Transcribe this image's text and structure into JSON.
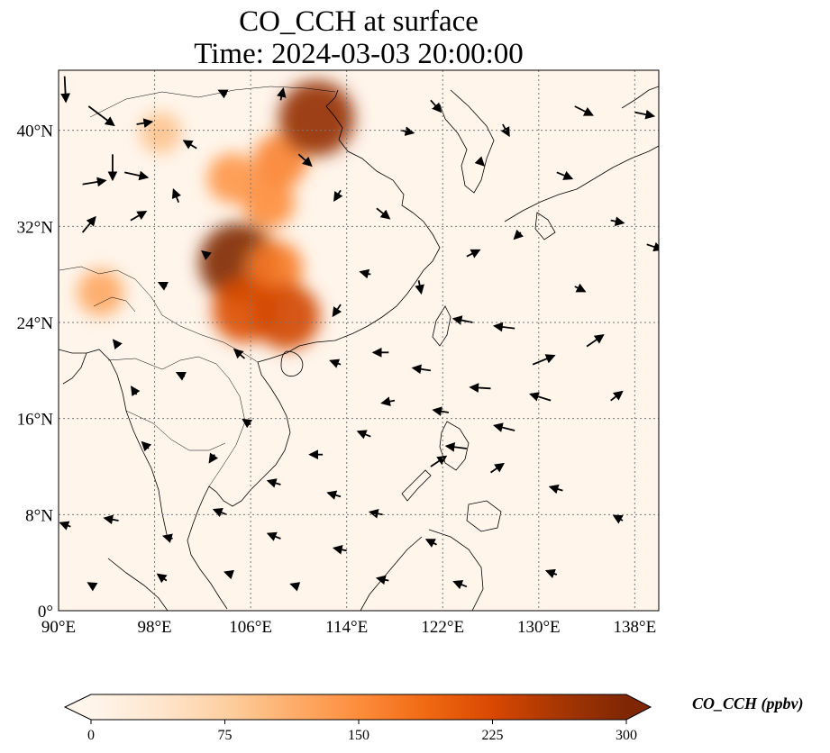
{
  "title": {
    "line1": "CO_CCH at surface",
    "line2": "Time: 2024-03-03 20:00:00"
  },
  "map": {
    "lon_range": [
      90,
      140
    ],
    "lat_range": [
      0,
      45
    ],
    "lon_ticks": [
      "90°E",
      "98°E",
      "106°E",
      "114°E",
      "122°E",
      "130°E",
      "138°E"
    ],
    "lon_tick_values": [
      90,
      98,
      106,
      114,
      122,
      130,
      138
    ],
    "lat_ticks": [
      "0°",
      "8°N",
      "16°N",
      "24°N",
      "32°N",
      "40°N"
    ],
    "lat_tick_values": [
      0,
      8,
      16,
      24,
      32,
      40
    ],
    "gridlines": true,
    "background_color": "#fff5eb"
  },
  "colorbar": {
    "label": "CO_CCH (ppbv)",
    "min": 0,
    "max": 300,
    "ticks": [
      "0",
      "75",
      "150",
      "225",
      "300"
    ],
    "tick_values": [
      0,
      75,
      150,
      225,
      300
    ],
    "colormap": [
      "#fff5eb",
      "#fee6ce",
      "#fdd0a2",
      "#fdae6b",
      "#fd8d3c",
      "#f16913",
      "#d94801",
      "#a63603",
      "#7f2704"
    ],
    "extend": "both"
  },
  "plumes": [
    {
      "lon": 108.5,
      "lat": 37.5,
      "value": 160
    },
    {
      "lon": 111.5,
      "lat": 41.0,
      "value": 280
    },
    {
      "lon": 105.0,
      "lat": 29.0,
      "value": 300
    },
    {
      "lon": 108.0,
      "lat": 28.5,
      "value": 170
    },
    {
      "lon": 105.5,
      "lat": 25.0,
      "value": 220
    },
    {
      "lon": 109.0,
      "lat": 24.5,
      "value": 230
    },
    {
      "lon": 107.5,
      "lat": 34.0,
      "value": 150
    },
    {
      "lon": 104.5,
      "lat": 36.0,
      "value": 140
    },
    {
      "lon": 93.5,
      "lat": 26.5,
      "value": 120
    },
    {
      "lon": 98.5,
      "lat": 39.8,
      "value": 90
    }
  ],
  "wind_vectors": [
    {
      "lon": 90.5,
      "lat": 44.5,
      "u": 0.1,
      "v": -2.0
    },
    {
      "lon": 92.5,
      "lat": 42.0,
      "u": 2.0,
      "v": -1.5
    },
    {
      "lon": 94.5,
      "lat": 38.0,
      "u": 0.0,
      "v": -2.0
    },
    {
      "lon": 92.0,
      "lat": 35.5,
      "u": 1.8,
      "v": 0.3
    },
    {
      "lon": 95.5,
      "lat": 36.5,
      "u": 1.8,
      "v": -0.4
    },
    {
      "lon": 92.0,
      "lat": 31.5,
      "u": 1.0,
      "v": 1.2
    },
    {
      "lon": 96.0,
      "lat": 32.5,
      "u": 1.2,
      "v": 0.7
    },
    {
      "lon": 96.5,
      "lat": 40.5,
      "u": 1.2,
      "v": 0.2
    },
    {
      "lon": 100.0,
      "lat": 34.0,
      "u": -0.4,
      "v": 1.0
    },
    {
      "lon": 101.5,
      "lat": 38.5,
      "u": -1.0,
      "v": 0.6
    },
    {
      "lon": 104.0,
      "lat": 43.0,
      "u": -0.6,
      "v": 0.3
    },
    {
      "lon": 108.5,
      "lat": 42.5,
      "u": 0.2,
      "v": 0.9
    },
    {
      "lon": 110.0,
      "lat": 38.0,
      "u": 1.0,
      "v": -0.9
    },
    {
      "lon": 113.5,
      "lat": 35.0,
      "u": -0.5,
      "v": -0.8
    },
    {
      "lon": 116.5,
      "lat": 33.5,
      "u": 1.0,
      "v": -0.8
    },
    {
      "lon": 118.5,
      "lat": 40.0,
      "u": 1.0,
      "v": -0.2
    },
    {
      "lon": 121.0,
      "lat": 42.5,
      "u": 0.8,
      "v": -0.9
    },
    {
      "lon": 125.0,
      "lat": 37.5,
      "u": 0.4,
      "v": -0.4
    },
    {
      "lon": 127.0,
      "lat": 40.5,
      "u": 0.5,
      "v": -0.9
    },
    {
      "lon": 133.0,
      "lat": 42.0,
      "u": 1.4,
      "v": -0.7
    },
    {
      "lon": 138.0,
      "lat": 41.5,
      "u": 1.5,
      "v": -0.3
    },
    {
      "lon": 131.5,
      "lat": 36.5,
      "u": 1.2,
      "v": -0.5
    },
    {
      "lon": 136.0,
      "lat": 32.5,
      "u": 1.0,
      "v": -0.2
    },
    {
      "lon": 139.0,
      "lat": 30.5,
      "u": 1.2,
      "v": -0.4
    },
    {
      "lon": 133.0,
      "lat": 27.0,
      "u": 0.8,
      "v": -0.4
    },
    {
      "lon": 128.5,
      "lat": 31.5,
      "u": -0.5,
      "v": -0.5
    },
    {
      "lon": 124.0,
      "lat": 29.5,
      "u": 1.0,
      "v": 0.5
    },
    {
      "lon": 120.0,
      "lat": 27.5,
      "u": 0.2,
      "v": -1.0
    },
    {
      "lon": 116.0,
      "lat": 28.0,
      "u": -0.8,
      "v": 0.2
    },
    {
      "lon": 113.5,
      "lat": 25.5,
      "u": -0.6,
      "v": -0.9
    },
    {
      "lon": 124.5,
      "lat": 24.0,
      "u": -1.5,
      "v": 0.3
    },
    {
      "lon": 128.0,
      "lat": 23.5,
      "u": -1.6,
      "v": 0.2
    },
    {
      "lon": 134.0,
      "lat": 22.0,
      "u": 1.3,
      "v": 0.9
    },
    {
      "lon": 129.5,
      "lat": 20.5,
      "u": 1.7,
      "v": 0.7
    },
    {
      "lon": 126.0,
      "lat": 18.5,
      "u": -1.6,
      "v": 0.1
    },
    {
      "lon": 131.0,
      "lat": 17.5,
      "u": -1.6,
      "v": 0.5
    },
    {
      "lon": 136.0,
      "lat": 17.5,
      "u": 0.9,
      "v": 0.7
    },
    {
      "lon": 121.0,
      "lat": 20.0,
      "u": -1.4,
      "v": 0.2
    },
    {
      "lon": 117.5,
      "lat": 21.5,
      "u": -1.2,
      "v": 0.0
    },
    {
      "lon": 113.5,
      "lat": 20.5,
      "u": -0.8,
      "v": 0.3
    },
    {
      "lon": 118.0,
      "lat": 17.5,
      "u": -1.0,
      "v": -0.2
    },
    {
      "lon": 122.5,
      "lat": 16.5,
      "u": -1.2,
      "v": 0.2
    },
    {
      "lon": 128.0,
      "lat": 15.0,
      "u": -1.6,
      "v": 0.4
    },
    {
      "lon": 124.0,
      "lat": 13.5,
      "u": -1.6,
      "v": 0.2
    },
    {
      "lon": 121.0,
      "lat": 12.0,
      "u": 1.2,
      "v": 0.8
    },
    {
      "lon": 126.0,
      "lat": 11.5,
      "u": 1.0,
      "v": 0.7
    },
    {
      "lon": 116.0,
      "lat": 14.5,
      "u": -1.0,
      "v": 0.4
    },
    {
      "lon": 112.0,
      "lat": 13.0,
      "u": -1.0,
      "v": 0.0
    },
    {
      "lon": 108.5,
      "lat": 10.5,
      "u": -1.0,
      "v": 0.3
    },
    {
      "lon": 113.5,
      "lat": 9.5,
      "u": -1.0,
      "v": 0.3
    },
    {
      "lon": 117.0,
      "lat": 8.0,
      "u": -1.0,
      "v": 0.2
    },
    {
      "lon": 121.5,
      "lat": 5.5,
      "u": -0.8,
      "v": 0.4
    },
    {
      "lon": 114.0,
      "lat": 5.0,
      "u": -1.0,
      "v": 0.2
    },
    {
      "lon": 108.5,
      "lat": 6.0,
      "u": -1.0,
      "v": 0.4
    },
    {
      "lon": 104.0,
      "lat": 8.0,
      "u": -1.0,
      "v": 0.4
    },
    {
      "lon": 99.5,
      "lat": 6.0,
      "u": -0.7,
      "v": 0.2
    },
    {
      "lon": 95.0,
      "lat": 7.5,
      "u": -1.1,
      "v": 0.2
    },
    {
      "lon": 91.0,
      "lat": 7.0,
      "u": -0.8,
      "v": 0.3
    },
    {
      "lon": 93.0,
      "lat": 2.0,
      "u": -0.5,
      "v": 0.3
    },
    {
      "lon": 99.0,
      "lat": 2.5,
      "u": -0.7,
      "v": 0.5
    },
    {
      "lon": 104.5,
      "lat": 3.0,
      "u": -0.6,
      "v": 0.2
    },
    {
      "lon": 110.0,
      "lat": 2.0,
      "u": -0.6,
      "v": 0.2
    },
    {
      "lon": 117.5,
      "lat": 2.5,
      "u": -0.9,
      "v": 0.2
    },
    {
      "lon": 124.0,
      "lat": 2.0,
      "u": -1.0,
      "v": 0.4
    },
    {
      "lon": 131.5,
      "lat": 3.0,
      "u": -0.8,
      "v": 0.3
    },
    {
      "lon": 137.0,
      "lat": 7.5,
      "u": -0.7,
      "v": 0.4
    },
    {
      "lon": 132.0,
      "lat": 10.0,
      "u": -1.0,
      "v": 0.3
    },
    {
      "lon": 96.5,
      "lat": 18.0,
      "u": -0.4,
      "v": 0.6
    },
    {
      "lon": 100.5,
      "lat": 19.5,
      "u": -0.6,
      "v": 0.3
    },
    {
      "lon": 105.5,
      "lat": 21.0,
      "u": -0.8,
      "v": 0.7
    },
    {
      "lon": 95.0,
      "lat": 22.0,
      "u": -0.4,
      "v": 0.5
    },
    {
      "lon": 97.5,
      "lat": 13.5,
      "u": -0.5,
      "v": 0.5
    },
    {
      "lon": 103.0,
      "lat": 13.0,
      "u": -0.4,
      "v": -0.6
    },
    {
      "lon": 106.0,
      "lat": 15.5,
      "u": -0.6,
      "v": 0.4
    },
    {
      "lon": 99.0,
      "lat": 27.0,
      "u": -0.6,
      "v": 0.3
    },
    {
      "lon": 102.5,
      "lat": 29.5,
      "u": -0.5,
      "v": 0.4
    }
  ]
}
